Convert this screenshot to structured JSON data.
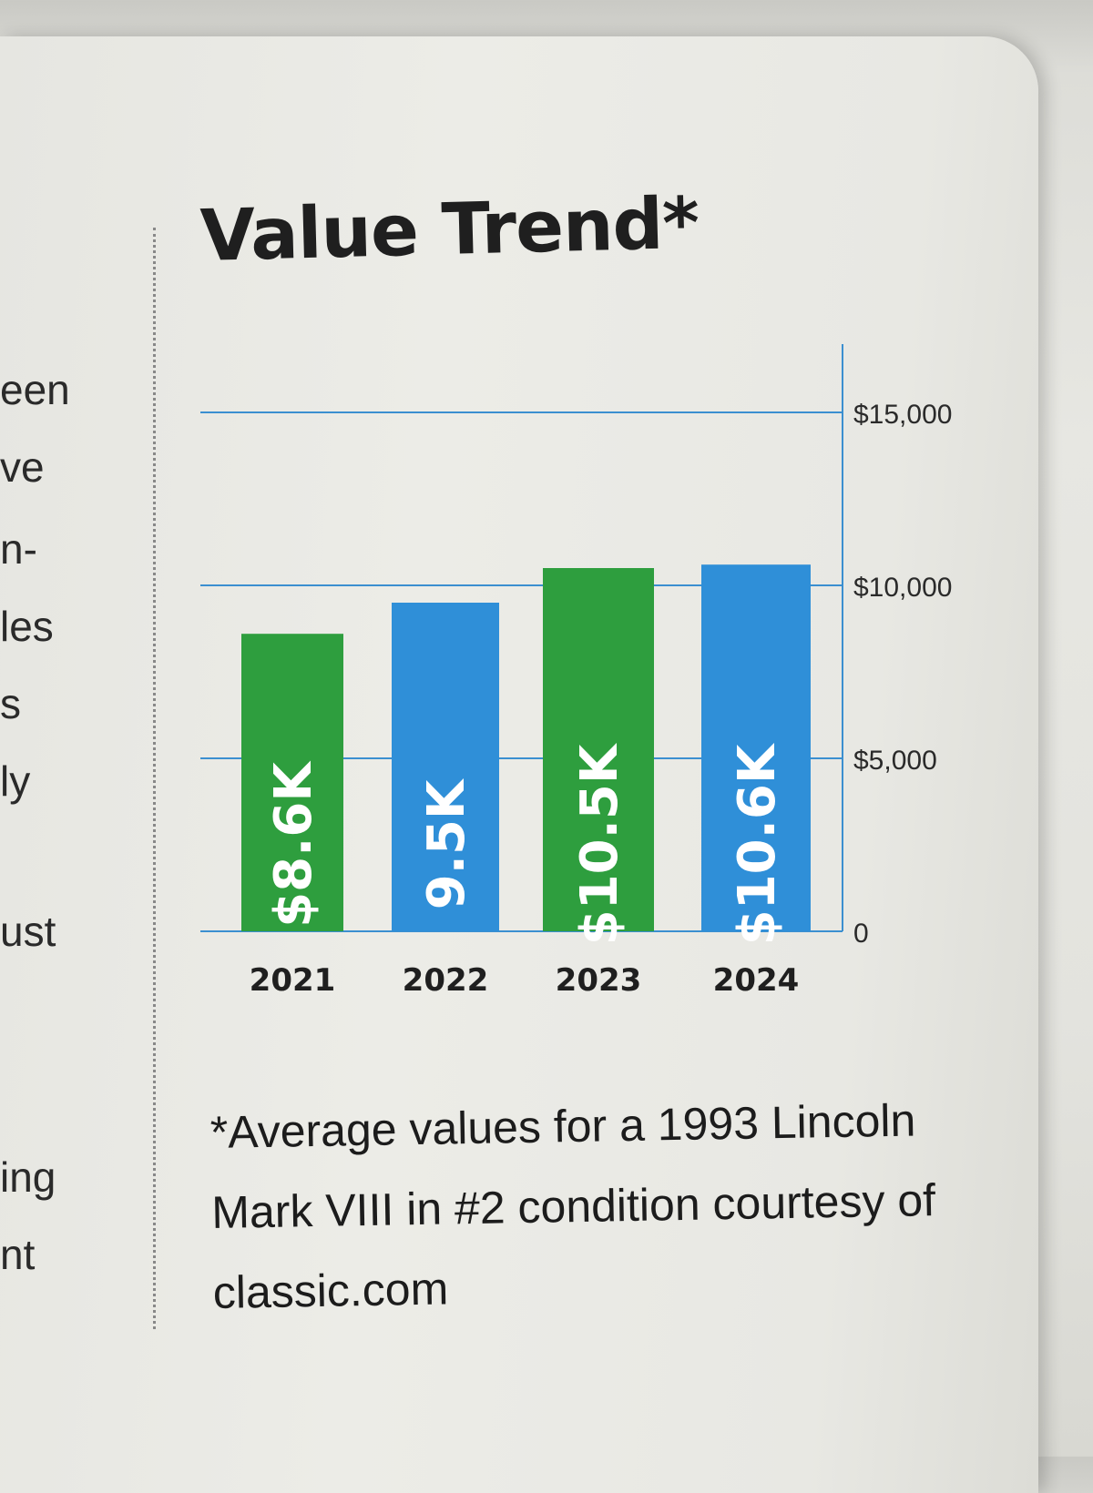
{
  "left_column_fragments": [
    "een",
    "ve",
    "n-",
    "les",
    "s",
    "ly",
    "ust",
    "ing",
    "nt"
  ],
  "chart_data": {
    "type": "bar",
    "title": "Value Trend*",
    "categories": [
      "2021",
      "2022",
      "2023",
      "2024"
    ],
    "values": [
      8600,
      9500,
      10500,
      10600
    ],
    "data_labels": [
      "$8.6K",
      "9.5K",
      "$10.5K",
      "$10.6K"
    ],
    "bar_colors": [
      "#2e9e3e",
      "#2f8fd8",
      "#2e9e3e",
      "#2f8fd8"
    ],
    "label_color": "#ffffff",
    "ylim": [
      0,
      15000
    ],
    "y_ticks": [
      0,
      5000,
      10000,
      15000
    ],
    "y_tick_labels": [
      "0",
      "$5,000",
      "$10,000",
      "$15,000"
    ],
    "y_axis_side": "right",
    "gridlines": true,
    "gridline_color": "#3b8fd0"
  },
  "footnote": "*Average values for a 1993 Lincoln Mark VIII in #2 condition courtesy of classic.com"
}
